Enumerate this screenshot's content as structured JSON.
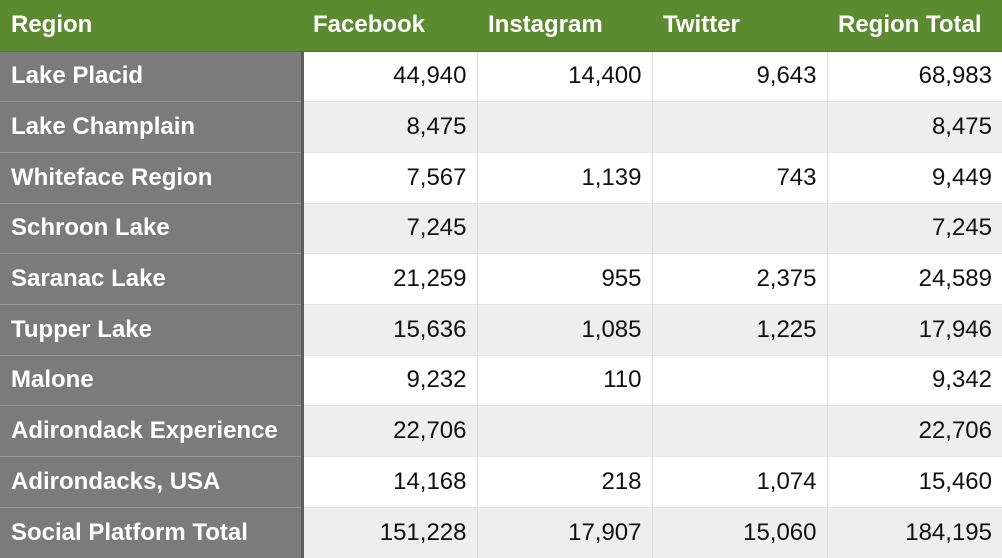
{
  "table": {
    "headers": [
      "Region",
      "Facebook",
      "Instagram",
      "Twitter",
      "Region Total"
    ],
    "rows": [
      {
        "region": "Lake Placid",
        "facebook": "44,940",
        "instagram": "14,400",
        "twitter": "9,643",
        "total": "68,983"
      },
      {
        "region": "Lake Champlain",
        "facebook": "8,475",
        "instagram": "",
        "twitter": "",
        "total": "8,475"
      },
      {
        "region": "Whiteface Region",
        "facebook": "7,567",
        "instagram": "1,139",
        "twitter": "743",
        "total": "9,449"
      },
      {
        "region": "Schroon Lake",
        "facebook": "7,245",
        "instagram": "",
        "twitter": "",
        "total": "7,245"
      },
      {
        "region": "Saranac Lake",
        "facebook": "21,259",
        "instagram": "955",
        "twitter": "2,375",
        "total": "24,589"
      },
      {
        "region": "Tupper Lake",
        "facebook": "15,636",
        "instagram": "1,085",
        "twitter": "1,225",
        "total": "17,946"
      },
      {
        "region": "Malone",
        "facebook": "9,232",
        "instagram": "110",
        "twitter": "",
        "total": "9,342"
      },
      {
        "region": "Adirondack Experience",
        "facebook": "22,706",
        "instagram": "",
        "twitter": "",
        "total": "22,706"
      },
      {
        "region": "Adirondacks, USA",
        "facebook": "14,168",
        "instagram": "218",
        "twitter": "1,074",
        "total": "15,460"
      },
      {
        "region": "Social Platform Total",
        "facebook": "151,228",
        "instagram": "17,907",
        "twitter": "15,060",
        "total": "184,195"
      }
    ]
  },
  "colors": {
    "header_bg": "#5b8a31",
    "row_header_bg": "#7b7b7b",
    "alt_row_bg": "#eeeeee"
  }
}
